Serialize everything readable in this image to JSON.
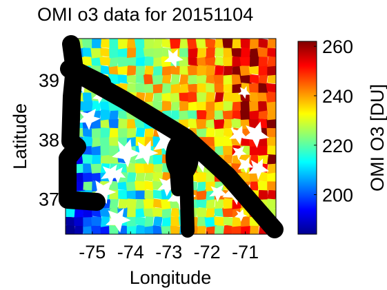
{
  "chart_data": {
    "type": "heatmap",
    "title": "OMI o3 data for 20151104",
    "xlabel": "Longitude",
    "ylabel": "Latitude",
    "colorbar_label": "OMI O3 [DU]",
    "xlim": [
      -75.7,
      -70.2
    ],
    "ylim": [
      36.4,
      39.7
    ],
    "x_ticks": [
      -75,
      -74,
      -73,
      -72,
      -71
    ],
    "x_tick_labels": [
      "-75",
      "-74",
      "-73",
      "-72",
      "-71"
    ],
    "y_ticks": [
      37,
      38,
      39
    ],
    "y_tick_labels": [
      "37",
      "38",
      "39"
    ],
    "colorbar_range": [
      184,
      262
    ],
    "colorbar_ticks": [
      200,
      220,
      240,
      260
    ],
    "colorbar_tick_labels": [
      "200",
      "220",
      "240",
      "260"
    ],
    "colormap": "jet",
    "colormap_stops": [
      "#00008f",
      "#0000ff",
      "#0080ff",
      "#00ffff",
      "#80ff80",
      "#ffff00",
      "#ff8000",
      "#ff0000",
      "#800000"
    ],
    "gradient": {
      "description_free": true,
      "west_lon": -75.7,
      "west_value": 208,
      "east_lon": -70.2,
      "east_value": 252,
      "pattern": "diagonal bands"
    },
    "grid": false,
    "legend": "colorbar-right",
    "overlay_color": "#000000"
  }
}
